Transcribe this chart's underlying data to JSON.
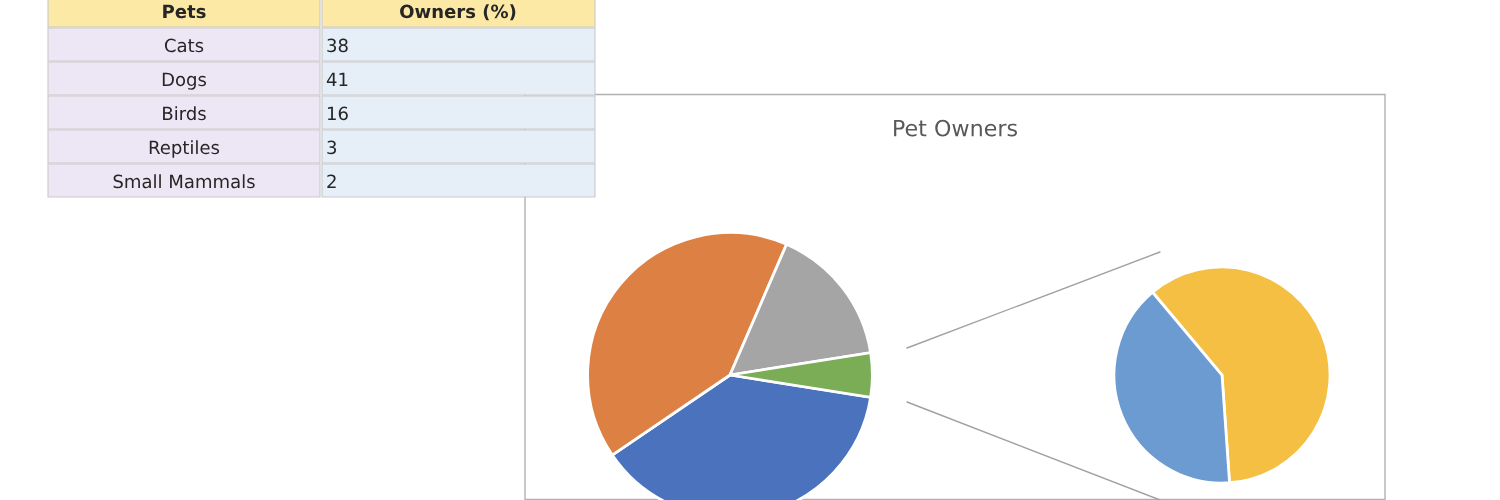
{
  "chart_data": [
    {
      "type": "other",
      "xlabel": "Pets",
      "ylabel": "Owners (%)",
      "categories": [
        "Cats",
        "Dogs",
        "Birds",
        "Reptiles",
        "Small Mammals"
      ],
      "values": [
        38,
        41,
        16,
        3,
        2
      ],
      "data_labels": true
    },
    {
      "type": "pie",
      "title": "Pet Owners",
      "categories": [
        null,
        null,
        null,
        null
      ],
      "values": [
        38,
        41,
        16,
        5
      ],
      "colors": [
        "#4a72bd",
        "#dd8043",
        "#a5a5a5",
        "#7aad55"
      ]
    },
    {
      "type": "pie",
      "categories": [
        null,
        null
      ],
      "values": [
        60,
        40
      ],
      "colors": [
        "#f4bf42",
        "#6b9bd1"
      ]
    }
  ]
}
